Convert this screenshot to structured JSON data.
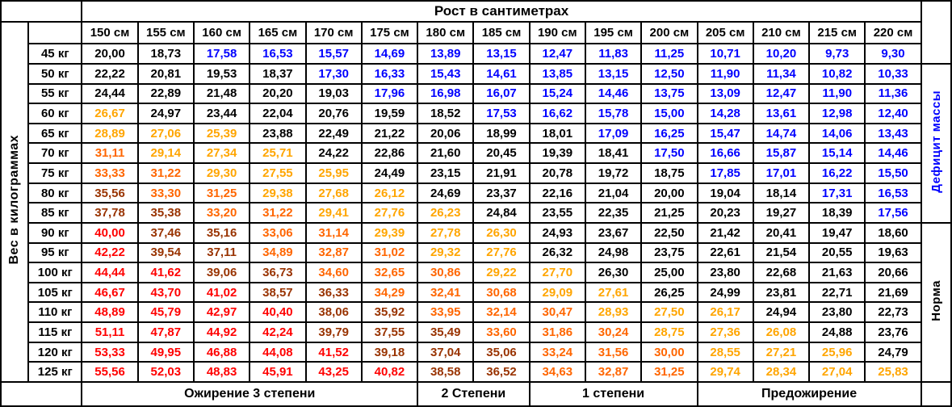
{
  "chart_data": {
    "type": "table",
    "title": "Рост в сантиметрах",
    "row_axis_label": "Вес в килограммах",
    "column_headers": [
      "150 см",
      "155 см",
      "160 см",
      "165 см",
      "170 см",
      "175 см",
      "180 см",
      "185 см",
      "190 см",
      "195 см",
      "200 см",
      "205 см",
      "210 см",
      "215 см",
      "220 см"
    ],
    "row_headers": [
      "45 кг",
      "50 кг",
      "55 кг",
      "60 кг",
      "65 кг",
      "70 кг",
      "75 кг",
      "80 кг",
      "85 кг",
      "90 кг",
      "95 кг",
      "100 кг",
      "105 кг",
      "110 кг",
      "115 кг",
      "120 кг",
      "125 кг"
    ],
    "values": [
      [
        "20,00",
        "18,73",
        "17,58",
        "16,53",
        "15,57",
        "14,69",
        "13,89",
        "13,15",
        "12,47",
        "11,83",
        "11,25",
        "10,71",
        "10,20",
        "9,73",
        "9,30"
      ],
      [
        "22,22",
        "20,81",
        "19,53",
        "18,37",
        "17,30",
        "16,33",
        "15,43",
        "14,61",
        "13,85",
        "13,15",
        "12,50",
        "11,90",
        "11,34",
        "10,82",
        "10,33"
      ],
      [
        "24,44",
        "22,89",
        "21,48",
        "20,20",
        "19,03",
        "17,96",
        "16,98",
        "16,07",
        "15,24",
        "14,46",
        "13,75",
        "13,09",
        "12,47",
        "11,90",
        "11,36"
      ],
      [
        "26,67",
        "24,97",
        "23,44",
        "22,04",
        "20,76",
        "19,59",
        "18,52",
        "17,53",
        "16,62",
        "15,78",
        "15,00",
        "14,28",
        "13,61",
        "12,98",
        "12,40"
      ],
      [
        "28,89",
        "27,06",
        "25,39",
        "23,88",
        "22,49",
        "21,22",
        "20,06",
        "18,99",
        "18,01",
        "17,09",
        "16,25",
        "15,47",
        "14,74",
        "14,06",
        "13,43"
      ],
      [
        "31,11",
        "29,14",
        "27,34",
        "25,71",
        "24,22",
        "22,86",
        "21,60",
        "20,45",
        "19,39",
        "18,41",
        "17,50",
        "16,66",
        "15,87",
        "15,14",
        "14,46"
      ],
      [
        "33,33",
        "31,22",
        "29,30",
        "27,55",
        "25,95",
        "24,49",
        "23,15",
        "21,91",
        "20,78",
        "19,72",
        "18,75",
        "17,85",
        "17,01",
        "16,22",
        "15,50"
      ],
      [
        "35,56",
        "33,30",
        "31,25",
        "29,38",
        "27,68",
        "26,12",
        "24,69",
        "23,37",
        "22,16",
        "21,04",
        "20,00",
        "19,04",
        "18,14",
        "17,31",
        "16,53"
      ],
      [
        "37,78",
        "35,38",
        "33,20",
        "31,22",
        "29,41",
        "27,76",
        "26,23",
        "24,84",
        "23,55",
        "22,35",
        "21,25",
        "20,23",
        "19,27",
        "18,39",
        "17,56"
      ],
      [
        "40,00",
        "37,46",
        "35,16",
        "33,06",
        "31,14",
        "29,39",
        "27,78",
        "26,30",
        "24,93",
        "23,67",
        "22,50",
        "21,42",
        "20,41",
        "19,47",
        "18,60"
      ],
      [
        "42,22",
        "39,54",
        "37,11",
        "34,89",
        "32,87",
        "31,02",
        "29,32",
        "27,76",
        "26,32",
        "24,98",
        "23,75",
        "22,61",
        "21,54",
        "20,55",
        "19,63"
      ],
      [
        "44,44",
        "41,62",
        "39,06",
        "36,73",
        "34,60",
        "32,65",
        "30,86",
        "29,22",
        "27,70",
        "26,30",
        "25,00",
        "23,80",
        "22,68",
        "21,63",
        "20,66"
      ],
      [
        "46,67",
        "43,70",
        "41,02",
        "38,57",
        "36,33",
        "34,29",
        "32,41",
        "30,68",
        "29,09",
        "27,61",
        "26,25",
        "24,99",
        "23,81",
        "22,71",
        "21,69"
      ],
      [
        "48,89",
        "45,79",
        "42,97",
        "40,40",
        "38,06",
        "35,92",
        "33,95",
        "32,14",
        "30,47",
        "28,93",
        "27,50",
        "26,17",
        "24,94",
        "23,80",
        "22,73"
      ],
      [
        "51,11",
        "47,87",
        "44,92",
        "42,24",
        "39,79",
        "37,55",
        "35,49",
        "33,60",
        "31,86",
        "30,24",
        "28,75",
        "27,36",
        "26,08",
        "24,88",
        "23,76"
      ],
      [
        "53,33",
        "49,95",
        "46,88",
        "44,08",
        "41,52",
        "39,18",
        "37,04",
        "35,06",
        "33,24",
        "31,56",
        "30,00",
        "28,55",
        "27,21",
        "25,96",
        "24,79"
      ],
      [
        "55,56",
        "52,03",
        "48,83",
        "45,91",
        "43,25",
        "40,82",
        "38,58",
        "36,52",
        "34,63",
        "32,87",
        "31,25",
        "29,74",
        "28,34",
        "27,04",
        "25,83"
      ]
    ],
    "color_codes": [
      "kkbbbbbbbbbbbbb",
      "kkkkbbbbbbbbbbb",
      "kkkkkbbbbbbbbbb",
      "okkkkkkbbbbbbbb",
      "oookkkkkkbbbbbb",
      "doookkkkkkbbbbb",
      "ddoookkkkkkbbbb",
      "rddoookkkkkkkbb",
      "rrddoookkkkkkkb",
      "Rrrddoookkkkkkk",
      "Rrrdddookkkkkkk",
      "RRrrdddookkkkkk",
      "RRRrrdddookkkkk",
      "RRRRrrdddoookkk",
      "RRRRrrrdddoookk",
      "RRRRRrrrdddoook",
      "RRRRRRrrdddoooo"
    ],
    "color_legend": {
      "b": {
        "hex": "#0000FF",
        "meaning": "Дефицит массы"
      },
      "k": {
        "hex": "#000000",
        "meaning": "Норма"
      },
      "o": {
        "hex": "#FFA500",
        "meaning": "Предожирение"
      },
      "d": {
        "hex": "#FF6600",
        "meaning": "Ожирение 1 степени"
      },
      "r": {
        "hex": "#993300",
        "meaning": "Ожирение 2 степени"
      },
      "R": {
        "hex": "#FF0000",
        "meaning": "Ожирение 3 степени"
      }
    },
    "right_labels": [
      {
        "text": "Дефицит массы",
        "color": "#0000FF",
        "row_start": "50 кг",
        "row_end": "85 кг"
      },
      {
        "text": "Норма",
        "color": "#000000",
        "row_start": "90 кг",
        "row_end": "125 кг"
      }
    ],
    "footer_categories": [
      {
        "label": "Ожирение 3 степени",
        "colspan": 6,
        "col_start": "150 см",
        "col_end": "175 см"
      },
      {
        "label": "2 Степени",
        "colspan": 2,
        "col_start": "180 см",
        "col_end": "185 см"
      },
      {
        "label": "1 степени",
        "colspan": 3,
        "col_start": "190 см",
        "col_end": "200 см"
      },
      {
        "label": "Предожирение",
        "colspan": 4,
        "col_start": "205 см",
        "col_end": "220 см"
      }
    ]
  }
}
